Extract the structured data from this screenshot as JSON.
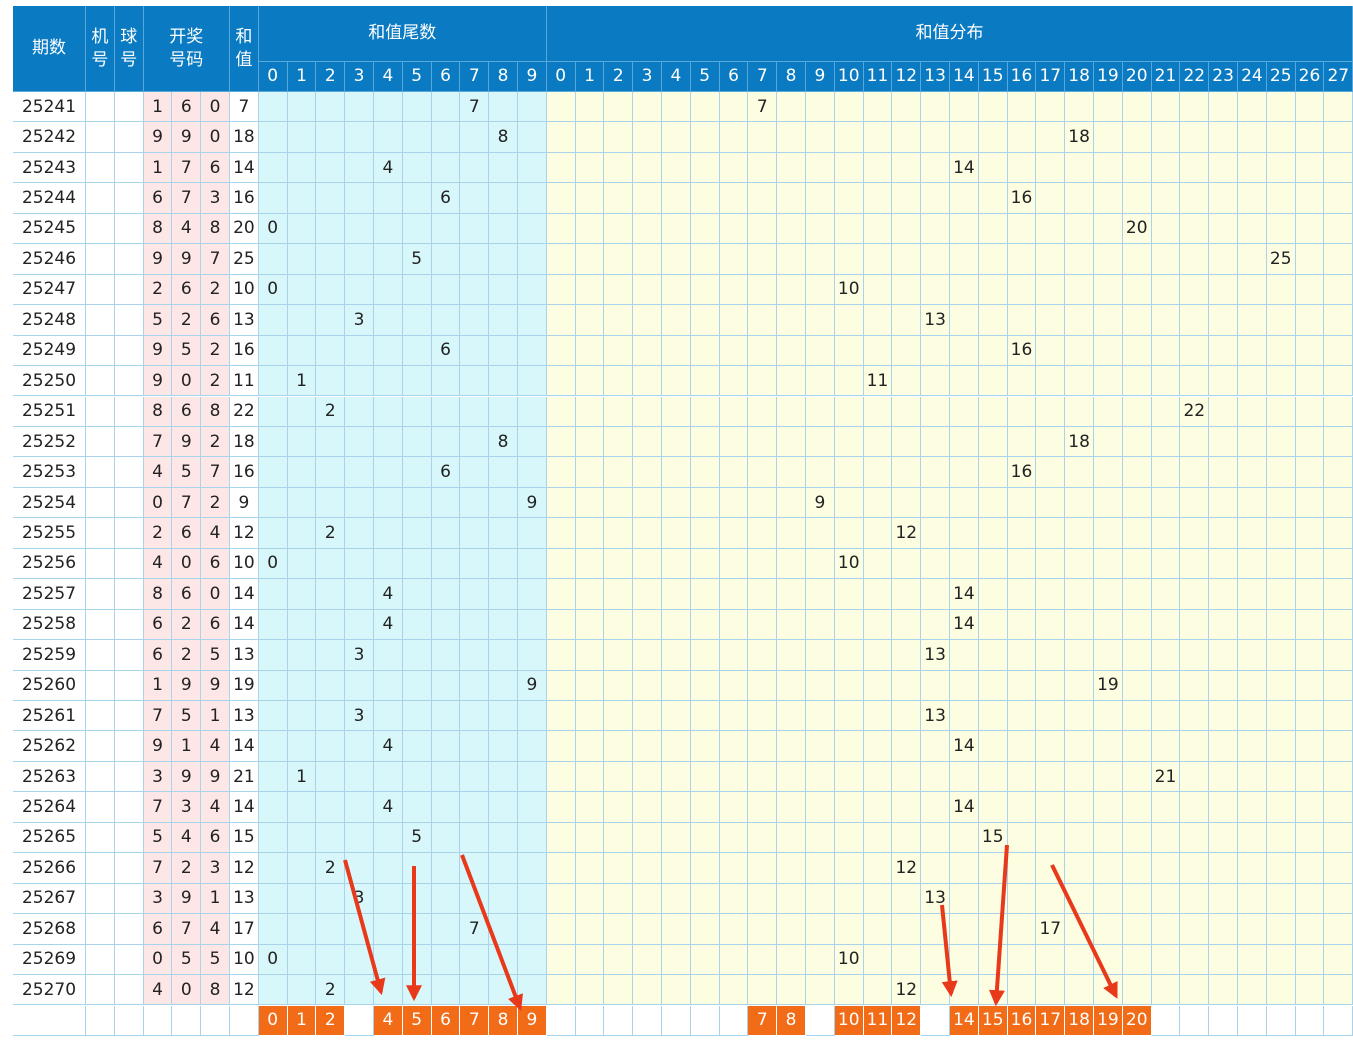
{
  "headers": {
    "period": "期数",
    "machine": "机号",
    "ball": "球号",
    "numbers": "开奖号码",
    "sum": "和值",
    "tail": "和值尾数",
    "distribution": "和值分布"
  },
  "tail_columns": [
    "0",
    "1",
    "2",
    "3",
    "4",
    "5",
    "6",
    "7",
    "8",
    "9"
  ],
  "sum_columns": [
    "0",
    "1",
    "2",
    "3",
    "4",
    "5",
    "6",
    "7",
    "8",
    "9",
    "10",
    "11",
    "12",
    "13",
    "14",
    "15",
    "16",
    "17",
    "18",
    "19",
    "20",
    "21",
    "22",
    "23",
    "24",
    "25",
    "26",
    "27"
  ],
  "rows": [
    {
      "period": "25241",
      "numbers": [
        1,
        6,
        0
      ],
      "sum": 7,
      "tail": 7
    },
    {
      "period": "25242",
      "numbers": [
        9,
        9,
        0
      ],
      "sum": 18,
      "tail": 8
    },
    {
      "period": "25243",
      "numbers": [
        1,
        7,
        6
      ],
      "sum": 14,
      "tail": 4
    },
    {
      "period": "25244",
      "numbers": [
        6,
        7,
        3
      ],
      "sum": 16,
      "tail": 6
    },
    {
      "period": "25245",
      "numbers": [
        8,
        4,
        8
      ],
      "sum": 20,
      "tail": 0
    },
    {
      "period": "25246",
      "numbers": [
        9,
        9,
        7
      ],
      "sum": 25,
      "tail": 5
    },
    {
      "period": "25247",
      "numbers": [
        2,
        6,
        2
      ],
      "sum": 10,
      "tail": 0
    },
    {
      "period": "25248",
      "numbers": [
        5,
        2,
        6
      ],
      "sum": 13,
      "tail": 3
    },
    {
      "period": "25249",
      "numbers": [
        9,
        5,
        2
      ],
      "sum": 16,
      "tail": 6
    },
    {
      "period": "25250",
      "numbers": [
        9,
        0,
        2
      ],
      "sum": 11,
      "tail": 1
    },
    {
      "period": "25251",
      "numbers": [
        8,
        6,
        8
      ],
      "sum": 22,
      "tail": 2
    },
    {
      "period": "25252",
      "numbers": [
        7,
        9,
        2
      ],
      "sum": 18,
      "tail": 8
    },
    {
      "period": "25253",
      "numbers": [
        4,
        5,
        7
      ],
      "sum": 16,
      "tail": 6
    },
    {
      "period": "25254",
      "numbers": [
        0,
        7,
        2
      ],
      "sum": 9,
      "tail": 9
    },
    {
      "period": "25255",
      "numbers": [
        2,
        6,
        4
      ],
      "sum": 12,
      "tail": 2
    },
    {
      "period": "25256",
      "numbers": [
        4,
        0,
        6
      ],
      "sum": 10,
      "tail": 0
    },
    {
      "period": "25257",
      "numbers": [
        8,
        6,
        0
      ],
      "sum": 14,
      "tail": 4
    },
    {
      "period": "25258",
      "numbers": [
        6,
        2,
        6
      ],
      "sum": 14,
      "tail": 4
    },
    {
      "period": "25259",
      "numbers": [
        6,
        2,
        5
      ],
      "sum": 13,
      "tail": 3
    },
    {
      "period": "25260",
      "numbers": [
        1,
        9,
        9
      ],
      "sum": 19,
      "tail": 9
    },
    {
      "period": "25261",
      "numbers": [
        7,
        5,
        1
      ],
      "sum": 13,
      "tail": 3
    },
    {
      "period": "25262",
      "numbers": [
        9,
        1,
        4
      ],
      "sum": 14,
      "tail": 4
    },
    {
      "period": "25263",
      "numbers": [
        3,
        9,
        9
      ],
      "sum": 21,
      "tail": 1
    },
    {
      "period": "25264",
      "numbers": [
        7,
        3,
        4
      ],
      "sum": 14,
      "tail": 4
    },
    {
      "period": "25265",
      "numbers": [
        5,
        4,
        6
      ],
      "sum": 15,
      "tail": 5
    },
    {
      "period": "25266",
      "numbers": [
        7,
        2,
        3
      ],
      "sum": 12,
      "tail": 2
    },
    {
      "period": "25267",
      "numbers": [
        3,
        9,
        1
      ],
      "sum": 13,
      "tail": 3
    },
    {
      "period": "25268",
      "numbers": [
        6,
        7,
        4
      ],
      "sum": 17,
      "tail": 7
    },
    {
      "period": "25269",
      "numbers": [
        0,
        5,
        5
      ],
      "sum": 10,
      "tail": 0
    },
    {
      "period": "25270",
      "numbers": [
        4,
        0,
        8
      ],
      "sum": 12,
      "tail": 2
    }
  ],
  "summary": {
    "tail": [
      0,
      1,
      2,
      4,
      5,
      6,
      7,
      8,
      9
    ],
    "sum": [
      7,
      8,
      10,
      11,
      12,
      14,
      15,
      16,
      17,
      18,
      19,
      20
    ]
  }
}
